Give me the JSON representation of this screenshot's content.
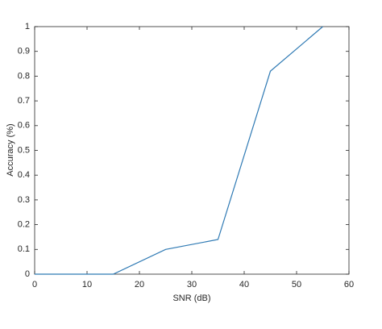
{
  "chart_data": {
    "type": "line",
    "x_label": "SNR (dB)",
    "y_label": "Accuracy (%)",
    "x": [
      0,
      15,
      25,
      35,
      45,
      55
    ],
    "values": [
      0,
      0,
      0.1,
      0.14,
      0.82,
      1
    ],
    "color": "#2f7ab4",
    "xlim": [
      0,
      60
    ],
    "xticks": [
      0,
      10,
      20,
      30,
      40,
      50,
      60
    ],
    "ylim": [
      0,
      1
    ],
    "yticks": [
      0,
      0.1,
      0.2,
      0.3,
      0.4,
      0.5,
      0.6,
      0.7,
      0.8,
      0.9,
      1
    ]
  }
}
